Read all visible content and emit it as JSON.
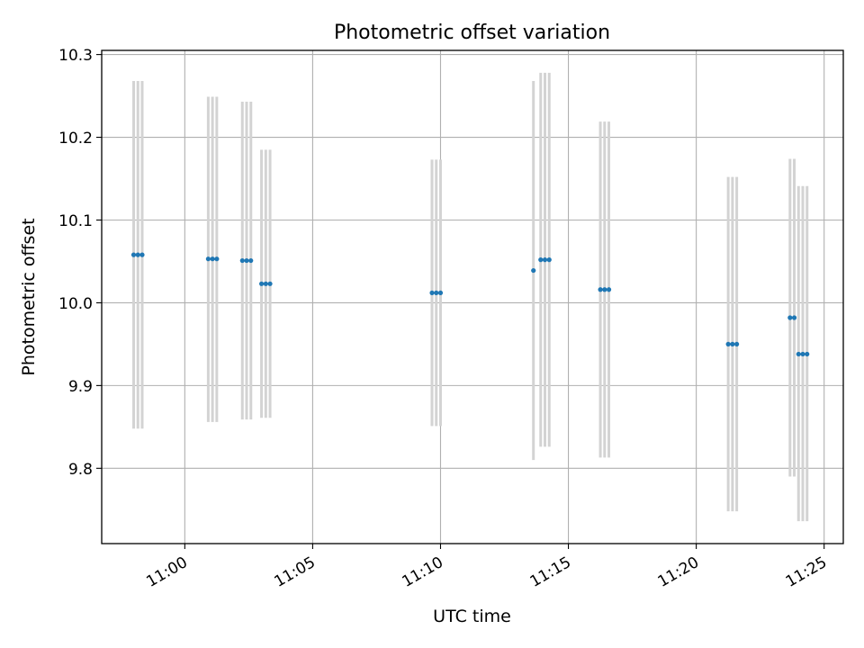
{
  "chart_data": {
    "type": "scatter",
    "title": "Photometric offset variation",
    "xlabel": "UTC time",
    "ylabel": "Photometric offset",
    "xlim": [
      "10:56:45",
      "11:25:45"
    ],
    "ylim": [
      9.709,
      10.305
    ],
    "grid": true,
    "x_ticks": [
      "11:00",
      "11:05",
      "11:10",
      "11:15",
      "11:20",
      "11:25"
    ],
    "y_ticks": [
      "9.8",
      "9.9",
      "10.0",
      "10.1",
      "10.2",
      "10.3"
    ],
    "point_color": "#1f77b4",
    "errorbar_color": "#d3d3d3",
    "groups": [
      {
        "points": [
          {
            "t": "10:58:00",
            "y": 10.058,
            "lo": 9.848,
            "hi": 10.268
          },
          {
            "t": "10:58:10",
            "y": 10.058,
            "lo": 9.848,
            "hi": 10.268
          },
          {
            "t": "10:58:20",
            "y": 10.058,
            "lo": 9.848,
            "hi": 10.268
          }
        ]
      },
      {
        "points": [
          {
            "t": "11:00:55",
            "y": 10.053,
            "lo": 9.856,
            "hi": 10.249
          },
          {
            "t": "11:01:05",
            "y": 10.053,
            "lo": 9.856,
            "hi": 10.249
          },
          {
            "t": "11:01:15",
            "y": 10.053,
            "lo": 9.856,
            "hi": 10.249
          }
        ]
      },
      {
        "points": [
          {
            "t": "11:02:15",
            "y": 10.051,
            "lo": 9.859,
            "hi": 10.243
          },
          {
            "t": "11:02:25",
            "y": 10.051,
            "lo": 9.859,
            "hi": 10.243
          },
          {
            "t": "11:02:35",
            "y": 10.051,
            "lo": 9.859,
            "hi": 10.243
          }
        ]
      },
      {
        "points": [
          {
            "t": "11:03:00",
            "y": 10.023,
            "lo": 9.861,
            "hi": 10.185
          },
          {
            "t": "11:03:10",
            "y": 10.023,
            "lo": 9.861,
            "hi": 10.185
          },
          {
            "t": "11:03:20",
            "y": 10.023,
            "lo": 9.861,
            "hi": 10.185
          }
        ]
      },
      {
        "points": [
          {
            "t": "11:09:40",
            "y": 10.012,
            "lo": 9.851,
            "hi": 10.173
          },
          {
            "t": "11:09:50",
            "y": 10.012,
            "lo": 9.851,
            "hi": 10.173
          },
          {
            "t": "11:10:00",
            "y": 10.012,
            "lo": 9.851,
            "hi": 10.173
          }
        ]
      },
      {
        "points": [
          {
            "t": "11:13:38",
            "y": 10.039,
            "lo": 9.81,
            "hi": 10.268
          },
          {
            "t": "11:13:55",
            "y": 10.052,
            "lo": 9.826,
            "hi": 10.278
          },
          {
            "t": "11:14:05",
            "y": 10.052,
            "lo": 9.826,
            "hi": 10.278
          },
          {
            "t": "11:14:15",
            "y": 10.052,
            "lo": 9.826,
            "hi": 10.278
          }
        ]
      },
      {
        "points": [
          {
            "t": "11:16:15",
            "y": 10.016,
            "lo": 9.813,
            "hi": 10.219
          },
          {
            "t": "11:16:25",
            "y": 10.016,
            "lo": 9.813,
            "hi": 10.219
          },
          {
            "t": "11:16:35",
            "y": 10.016,
            "lo": 9.813,
            "hi": 10.219
          }
        ]
      },
      {
        "points": [
          {
            "t": "11:21:15",
            "y": 9.95,
            "lo": 9.748,
            "hi": 10.152
          },
          {
            "t": "11:21:25",
            "y": 9.95,
            "lo": 9.748,
            "hi": 10.152
          },
          {
            "t": "11:21:35",
            "y": 9.95,
            "lo": 9.748,
            "hi": 10.152
          }
        ]
      },
      {
        "points": [
          {
            "t": "11:23:40",
            "y": 9.982,
            "lo": 9.79,
            "hi": 10.174
          },
          {
            "t": "11:23:50",
            "y": 9.982,
            "lo": 9.79,
            "hi": 10.174
          }
        ]
      },
      {
        "points": [
          {
            "t": "11:24:00",
            "y": 9.938,
            "lo": 9.736,
            "hi": 10.141
          },
          {
            "t": "11:24:10",
            "y": 9.938,
            "lo": 9.736,
            "hi": 10.141
          },
          {
            "t": "11:24:20",
            "y": 9.938,
            "lo": 9.736,
            "hi": 10.141
          }
        ]
      }
    ]
  }
}
